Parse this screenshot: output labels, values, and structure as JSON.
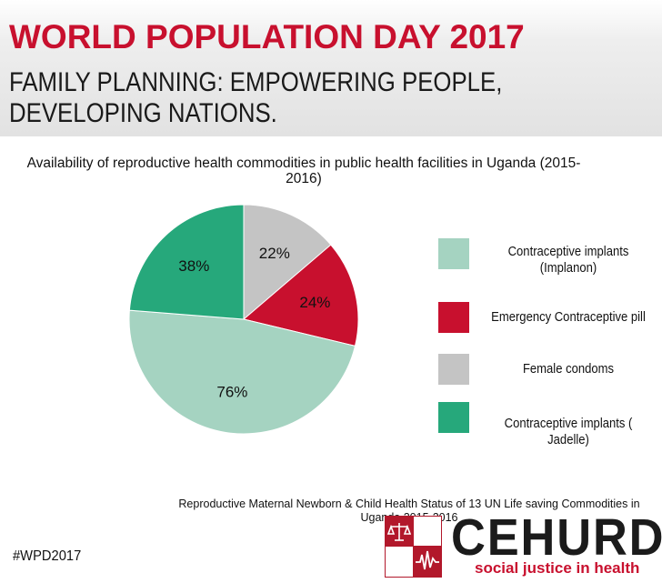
{
  "header": {
    "title": "WORLD POPULATION DAY 2017",
    "subtitle": "FAMILY PLANNING: EMPOWERING PEOPLE, DEVELOPING NATIONS."
  },
  "chart_data": {
    "type": "pie",
    "title": "Availability of reproductive health  commodities in public health facilities in Uganda (2015-2016)",
    "categories": [
      "Contraceptive implants (Implanon)",
      "Emergency Contraceptive pill",
      "Female condoms",
      "Contraceptive implants ( Jadelle)"
    ],
    "values": [
      76,
      24,
      22,
      38
    ],
    "value_labels": [
      "76%",
      "24%",
      "22%",
      "38%"
    ],
    "colors": [
      "#a5d3c1",
      "#c8102e",
      "#c4c4c4",
      "#26a87b"
    ],
    "start": "12 o'clock, clockwise, starting with Female condoms",
    "legend_position": "right"
  },
  "legend": {
    "items": [
      {
        "label": "Contraceptive implants (Implanon)",
        "color": "#a5d3c1"
      },
      {
        "label": "Emergency Contraceptive pill",
        "color": "#c8102e"
      },
      {
        "label": "Female condoms",
        "color": "#c4c4c4"
      },
      {
        "label": "Contraceptive implants ( Jadelle)",
        "color": "#26a87b"
      }
    ]
  },
  "footer": {
    "source": "Reproductive Maternal Newborn & Child Health Status of 13 UN Life saving Commodities in Uganda  2015-2016",
    "hashtag": "#WPD2017",
    "logo_name": "CEHURD",
    "logo_tagline": "social justice in health"
  },
  "colors": {
    "brand_red": "#c8102e",
    "header_gray": "#e2e2e2"
  }
}
